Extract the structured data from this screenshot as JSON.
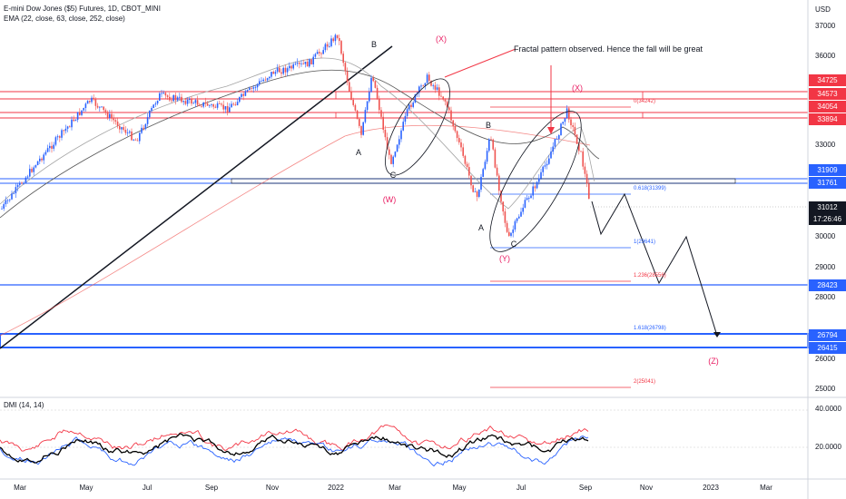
{
  "header": {
    "symbol_line": "E-mini Dow Jones ($5) Futures, 1D, CBOT_MINI",
    "ema_line": "EMA (22, close, 63, close, 252, close)",
    "dmi_line": "DMI (14, 14)"
  },
  "currency": "USD",
  "price_axis": [
    "37000",
    "36000",
    "35000",
    "34000",
    "33000",
    "32000",
    "31000",
    "30000",
    "29000",
    "28000",
    "27000",
    "26000",
    "25000"
  ],
  "dmi_axis": [
    "40.0000",
    "20.0000"
  ],
  "time_axis": [
    "Mar",
    "May",
    "Jul",
    "Sep",
    "Nov",
    "2022",
    "Mar",
    "May",
    "Jul",
    "Sep",
    "Nov",
    "2023",
    "Mar"
  ],
  "price_tags": {
    "t34725": "34725",
    "t34573": "34573",
    "t34054": "34054",
    "t33894": "33894",
    "t31909": "31909",
    "t31761": "31761",
    "t31012": "31012",
    "countdown": "17:26:46",
    "t28423": "28423",
    "t26794": "26794",
    "t26415": "26415"
  },
  "annotations": {
    "note": "Fractal pattern observed. Hence the fall will be great",
    "x1": "(X)",
    "x2": "(X)",
    "w": "(W)",
    "y": "(Y)",
    "z": "(Z)",
    "b1": "B",
    "a1": "A",
    "c1": "C",
    "b2": "B",
    "a2": "A",
    "c2": "C"
  },
  "fib_labels": {
    "f0": "0(34242)",
    "f0618": "0.618(31399)",
    "f1": "1(29641)",
    "f1236": "1.236(28556)",
    "f1618": "1.618(26798)",
    "f2": "2(25041)"
  },
  "colors": {
    "candle_up": "#2962ff",
    "candle_down": "#ef5350",
    "price_line": "#f23645",
    "blue_line": "#2962ff",
    "ema_fast": "#a5a5a5",
    "ema_mid": "#555555",
    "ema_slow": "#ef5350",
    "dmi_plus": "#2962ff",
    "dmi_minus": "#f23645",
    "adx": "#000000",
    "annotation_red": "#e91e63"
  }
}
